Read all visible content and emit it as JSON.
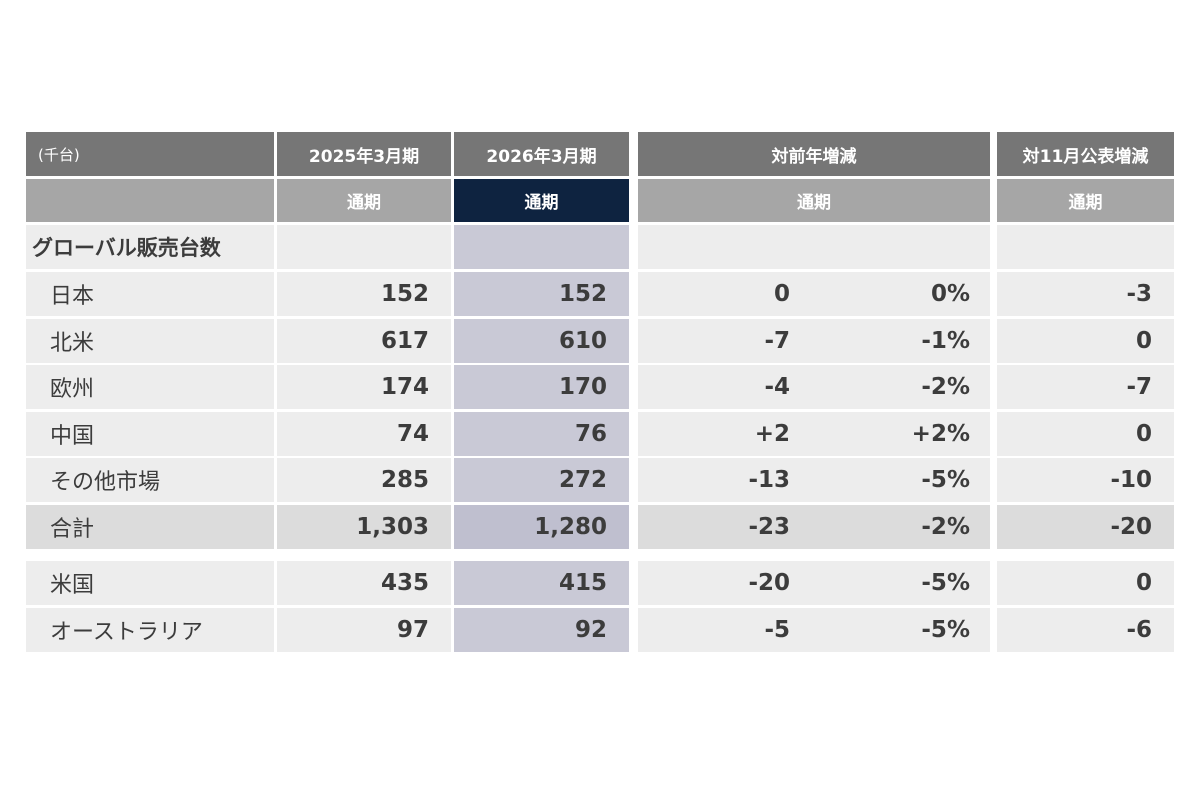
{
  "header": {
    "unit": "(千台)",
    "col_2025": "2025年3月期",
    "col_2026": "2026年3月期",
    "col_yoy": "対前年増減",
    "col_nov": "対11月公表増減",
    "sub_label": "通期"
  },
  "section_label": "グローバル販売台数",
  "rows": [
    {
      "name": "日本",
      "fy2025": "152",
      "fy2026": "152",
      "yoy": "0",
      "yoy_pct": "0%",
      "nov": "-3"
    },
    {
      "name": "北米",
      "fy2025": "617",
      "fy2026": "610",
      "yoy": "-7",
      "yoy_pct": "-1%",
      "nov": "0"
    },
    {
      "name": "欧州",
      "fy2025": "174",
      "fy2026": "170",
      "yoy": "-4",
      "yoy_pct": "-2%",
      "nov": "-7"
    },
    {
      "name": "中国",
      "fy2025": "74",
      "fy2026": "76",
      "yoy": "+2",
      "yoy_pct": "+2%",
      "nov": "0"
    },
    {
      "name": "その他市場",
      "fy2025": "285",
      "fy2026": "272",
      "yoy": "-13",
      "yoy_pct": "-5%",
      "nov": "-10"
    },
    {
      "name": "合計",
      "fy2025": "1,303",
      "fy2026": "1,280",
      "yoy": "-23",
      "yoy_pct": "-2%",
      "nov": "-20"
    },
    {
      "name": "米国",
      "fy2025": "435",
      "fy2026": "415",
      "yoy": "-20",
      "yoy_pct": "-5%",
      "nov": "0"
    },
    {
      "name": "オーストラリア",
      "fy2025": "97",
      "fy2026": "92",
      "yoy": "-5",
      "yoy_pct": "-5%",
      "nov": "-6"
    }
  ]
}
